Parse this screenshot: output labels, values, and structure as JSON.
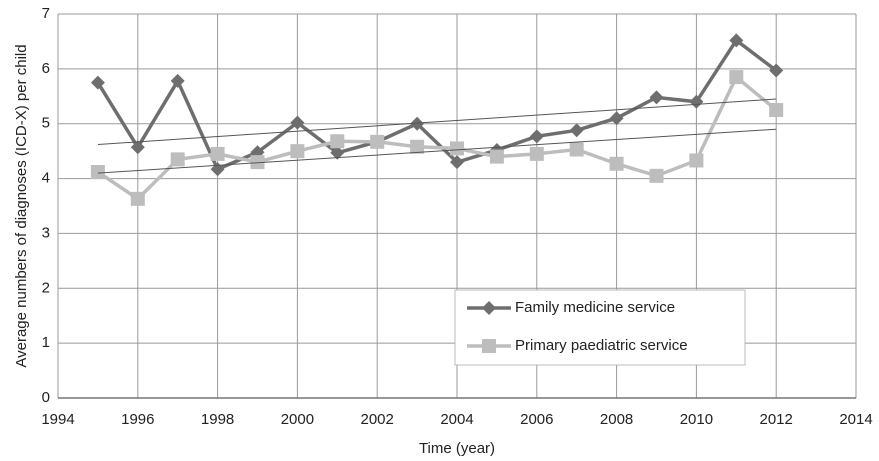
{
  "chart_data": {
    "type": "line",
    "x_label": "Time (year)",
    "y_label": "Average numbers of diagnoses (ICD-X) per child",
    "x": [
      1995,
      1996,
      1997,
      1998,
      1999,
      2000,
      2001,
      2002,
      2003,
      2004,
      2005,
      2006,
      2007,
      2008,
      2009,
      2010,
      2011,
      2012
    ],
    "series": [
      {
        "name": "Family medicine service",
        "color": "#6e6e6e",
        "marker": "diamond",
        "values": [
          5.75,
          4.57,
          5.78,
          4.17,
          4.48,
          5.02,
          4.47,
          4.67,
          5.0,
          4.3,
          4.52,
          4.77,
          4.88,
          5.1,
          5.48,
          5.4,
          6.52,
          5.97
        ]
      },
      {
        "name": "Primary paediatric service",
        "color": "#bdbdbd",
        "marker": "square",
        "values": [
          4.12,
          3.63,
          4.35,
          4.45,
          4.3,
          4.5,
          4.68,
          4.67,
          4.58,
          4.55,
          4.4,
          4.45,
          4.53,
          4.27,
          4.05,
          4.33,
          5.85,
          5.25
        ]
      }
    ],
    "trendlines": [
      {
        "color": "#555555",
        "x": [
          1995,
          2012
        ],
        "values": [
          4.62,
          5.45
        ]
      },
      {
        "color": "#555555",
        "x": [
          1995,
          2012
        ],
        "values": [
          4.1,
          4.9
        ]
      }
    ],
    "xlim": [
      1994,
      2014
    ],
    "xticks": [
      1994,
      1996,
      1998,
      2000,
      2002,
      2004,
      2006,
      2008,
      2010,
      2012,
      2014
    ],
    "ylim": [
      0,
      7
    ],
    "yticks": [
      0,
      1,
      2,
      3,
      4,
      5,
      6,
      7
    ],
    "grid": true,
    "legend": "lower right"
  }
}
